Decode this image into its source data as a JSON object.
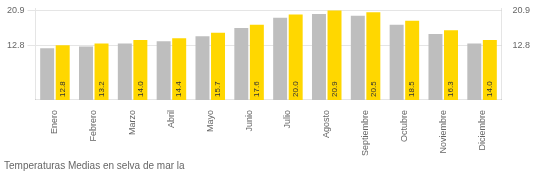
{
  "chart_data": {
    "type": "bar",
    "title": "Temperaturas Medias en selva de mar la",
    "categories": [
      "Enero",
      "Febrero",
      "Marzo",
      "Abril",
      "Mayo",
      "Junio",
      "Julio",
      "Agosto",
      "Septiembre",
      "Octubre",
      "Noviembre",
      "Diciembre"
    ],
    "series": [
      {
        "color": "#BEBEBE",
        "values": [
          12.1,
          12.5,
          13.2,
          13.7,
          14.9,
          16.8,
          19.2,
          20.1,
          19.7,
          17.6,
          15.4,
          13.2
        ]
      },
      {
        "color": "#FFD700",
        "values": [
          12.8,
          13.2,
          14.0,
          14.4,
          15.7,
          17.6,
          20.0,
          20.9,
          20.5,
          18.5,
          16.3,
          14.0
        ],
        "data_labels": true,
        "value_labels": [
          "12.8",
          "13.2",
          "14.0",
          "14.4",
          "15.7",
          "17.6",
          "20.0",
          "20.9",
          "20.5",
          "18.5",
          "16.3",
          "14.0"
        ]
      }
    ],
    "ylim": [
      0,
      21.4
    ],
    "yticks": [
      12.8,
      20.9
    ],
    "y2lim": [
      0,
      21.4
    ],
    "y2ticks": [
      12.8,
      20.9
    ],
    "grid": true
  }
}
